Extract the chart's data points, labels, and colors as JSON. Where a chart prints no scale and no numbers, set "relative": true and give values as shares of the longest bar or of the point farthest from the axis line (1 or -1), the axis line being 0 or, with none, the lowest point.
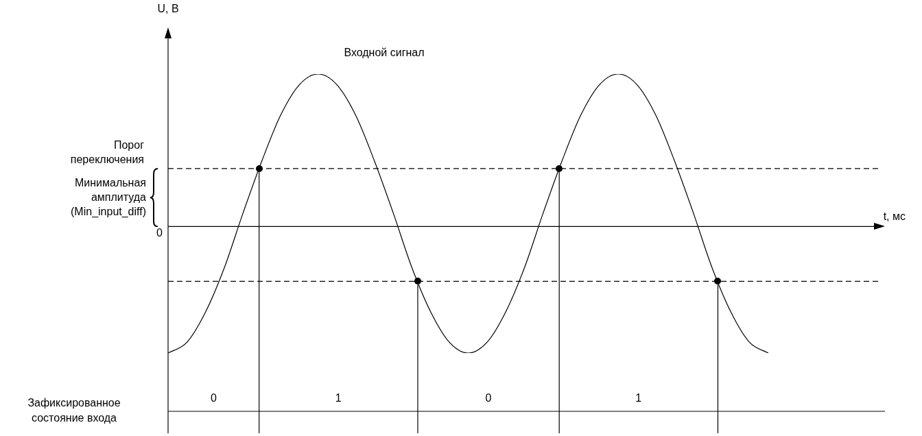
{
  "chart_data": {
    "type": "line",
    "relative": true,
    "title": "Входной сигнал",
    "legend": false,
    "categories": [
      null,
      null,
      null,
      null,
      null,
      null,
      null,
      null,
      null,
      null,
      null,
      null,
      null,
      null,
      null,
      null,
      null,
      null,
      null,
      null,
      null,
      null,
      null,
      null,
      null,
      null,
      null,
      null,
      null,
      null,
      null,
      null,
      null
    ],
    "series": [
      {
        "color": "#000000",
        "values": [
          -0.83,
          -0.76,
          -0.56,
          -0.27,
          0.09,
          0.43,
          0.73,
          0.93,
          1,
          0.93,
          0.73,
          0.43,
          0.09,
          -0.27,
          -0.56,
          -0.76,
          -0.83,
          -0.76,
          -0.56,
          -0.27,
          0.09,
          0.43,
          0.73,
          0.93,
          1,
          0.93,
          0.73,
          0.43,
          0.09,
          -0.27,
          -0.56,
          -0.76,
          -0.83
        ]
      }
    ],
    "ref_lines": [
      {
        "axis": "y",
        "value": 0.38,
        "label": "Порог переключения",
        "line_style": "dashed",
        "color": "#000000"
      },
      {
        "axis": "y",
        "value": -0.36,
        "line_style": "dashed",
        "color": "#000000"
      }
    ],
    "annotations": [
      "U, В",
      "t, мс",
      "0",
      "Минимальная амплитуда (Min_input_diff)",
      "Зафиксированное состояние входа",
      "0",
      "1",
      "0",
      "1"
    ]
  }
}
